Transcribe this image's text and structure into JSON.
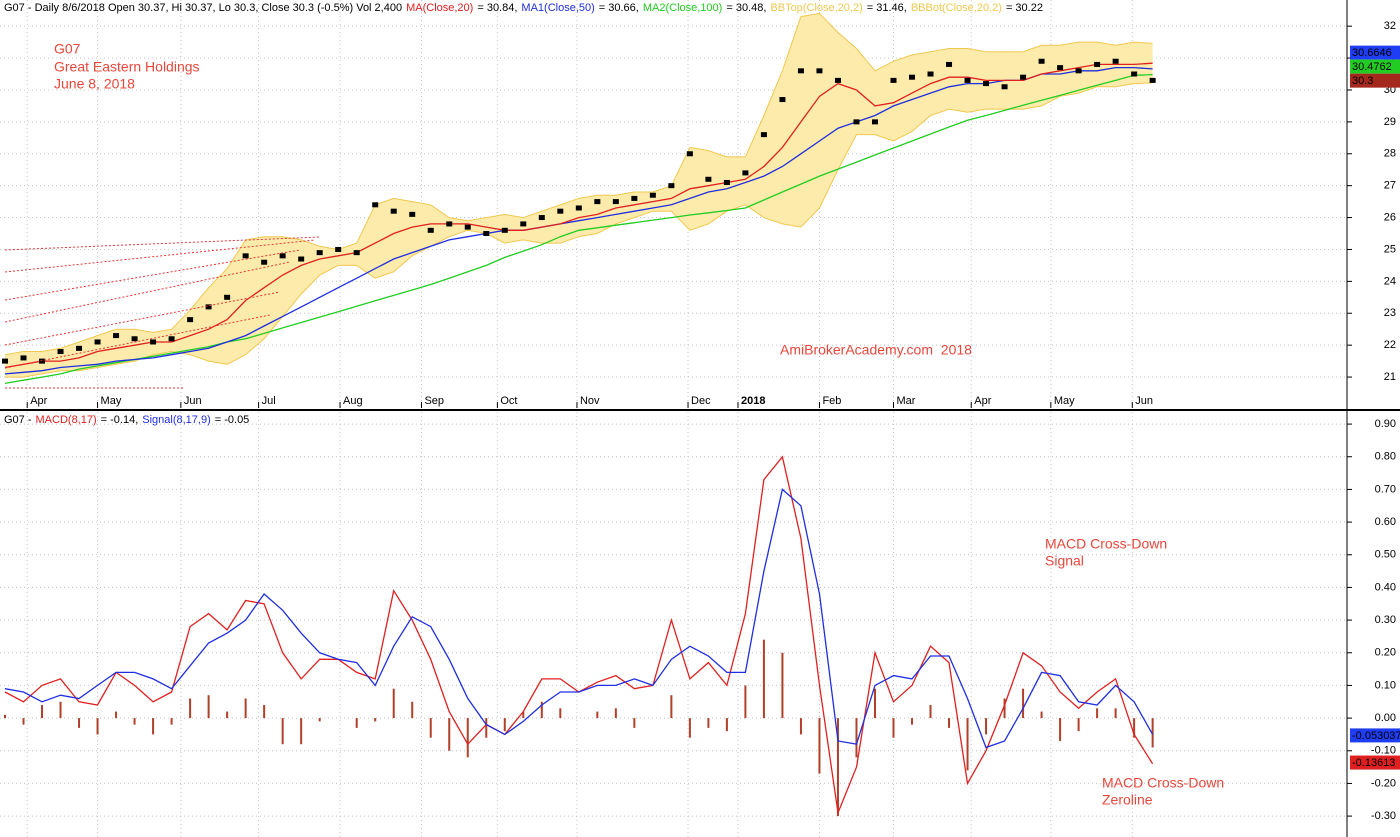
{
  "chart_data": [
    {
      "type": "stock",
      "info": "G07 - Daily 8/6/2018 Open 30.37, Hi 30.37, Lo 30.3, Close 30.3 (-0.5%) Vol 2,400",
      "title": "G07",
      "subtitle": "Great Eastern Holdings",
      "date": "June 8, 2018",
      "watermark": "AmiBrokerAcademy.com  2018",
      "band_fill": "#fcebaa",
      "close": {
        "color": "#000000",
        "values": [
          21.5,
          21.6,
          21.5,
          21.8,
          21.9,
          22.1,
          22.3,
          22.2,
          22.1,
          22.2,
          22.8,
          23.2,
          23.5,
          24.8,
          24.6,
          24.8,
          24.7,
          24.9,
          25.0,
          24.9,
          26.4,
          26.2,
          26.1,
          25.6,
          25.8,
          25.7,
          25.5,
          25.6,
          25.8,
          26.0,
          26.2,
          26.3,
          26.5,
          26.5,
          26.6,
          26.7,
          27.0,
          28.0,
          27.2,
          27.1,
          27.4,
          28.6,
          29.7,
          30.6,
          30.6,
          30.3,
          29.0,
          29.0,
          30.3,
          30.4,
          30.5,
          30.8,
          30.3,
          30.2,
          30.1,
          30.4,
          30.9,
          30.7,
          30.6,
          30.8,
          30.9,
          30.5,
          30.3
        ]
      },
      "series": [
        {
          "name": "MA(Close,20)",
          "readout": "= 30.84,",
          "color": "#e02020",
          "values": [
            21.3,
            21.4,
            21.5,
            21.5,
            21.6,
            21.8,
            21.9,
            22.0,
            22.1,
            22.1,
            22.3,
            22.5,
            22.8,
            23.4,
            23.8,
            24.2,
            24.5,
            24.7,
            24.8,
            24.9,
            25.2,
            25.5,
            25.7,
            25.8,
            25.8,
            25.8,
            25.7,
            25.6,
            25.6,
            25.7,
            25.8,
            26.0,
            26.1,
            26.3,
            26.4,
            26.5,
            26.6,
            26.9,
            27.0,
            27.1,
            27.2,
            27.6,
            28.2,
            29.0,
            29.8,
            30.2,
            30.0,
            29.5,
            29.6,
            29.9,
            30.2,
            30.4,
            30.4,
            30.3,
            30.3,
            30.3,
            30.5,
            30.6,
            30.7,
            30.8,
            30.8,
            30.8,
            30.84
          ]
        },
        {
          "name": "MA1(Close,50)",
          "readout": "= 30.66,",
          "color": "#1f2ee0",
          "values": [
            21.1,
            21.15,
            21.2,
            21.3,
            21.35,
            21.4,
            21.5,
            21.55,
            21.6,
            21.7,
            21.8,
            21.9,
            22.1,
            22.3,
            22.6,
            22.9,
            23.2,
            23.5,
            23.8,
            24.1,
            24.4,
            24.7,
            24.9,
            25.1,
            25.3,
            25.4,
            25.5,
            25.6,
            25.6,
            25.7,
            25.8,
            25.9,
            26.0,
            26.1,
            26.2,
            26.3,
            26.4,
            26.6,
            26.8,
            26.9,
            27.1,
            27.3,
            27.6,
            28.0,
            28.4,
            28.8,
            29.0,
            29.2,
            29.5,
            29.7,
            29.9,
            30.1,
            30.2,
            30.2,
            30.3,
            30.3,
            30.5,
            30.5,
            30.6,
            30.6,
            30.7,
            30.7,
            30.66
          ]
        },
        {
          "name": "MA2(Close,100)",
          "readout": "= 30.48,",
          "color": "#22cc22",
          "values": [
            20.8,
            20.9,
            21.0,
            21.1,
            21.25,
            21.35,
            21.45,
            21.55,
            21.65,
            21.75,
            21.85,
            21.95,
            22.1,
            22.2,
            22.37,
            22.54,
            22.71,
            22.88,
            23.05,
            23.22,
            23.39,
            23.56,
            23.73,
            23.9,
            24.1,
            24.3,
            24.5,
            24.75,
            24.95,
            25.15,
            25.4,
            25.6,
            25.68,
            25.76,
            25.84,
            25.92,
            26.0,
            26.08,
            26.15,
            26.22,
            26.3,
            26.55,
            26.8,
            27.05,
            27.3,
            27.52,
            27.74,
            27.96,
            28.18,
            28.4,
            28.62,
            28.84,
            29.05,
            29.2,
            29.36,
            29.52,
            29.68,
            29.83,
            29.99,
            30.15,
            30.3,
            30.46,
            30.48
          ]
        },
        {
          "name": "BBTop(Close,20,2)",
          "readout": "= 31.46,",
          "color": "#f0c850",
          "values": [
            21.7,
            21.8,
            21.8,
            21.9,
            22.1,
            22.3,
            22.5,
            22.5,
            22.4,
            22.5,
            23.1,
            23.8,
            24.4,
            25.3,
            25.4,
            25.4,
            25.3,
            25.1,
            25.0,
            25.2,
            26.4,
            26.6,
            26.5,
            26.4,
            26.0,
            25.9,
            26.0,
            26.1,
            26.0,
            26.2,
            26.4,
            26.6,
            26.7,
            26.7,
            26.8,
            26.8,
            27.0,
            28.2,
            28.1,
            27.9,
            27.9,
            29.2,
            30.6,
            32.3,
            32.4,
            31.8,
            31.3,
            30.6,
            30.9,
            31.1,
            31.2,
            31.3,
            31.3,
            31.2,
            31.2,
            31.2,
            31.4,
            31.4,
            31.5,
            31.5,
            31.4,
            31.5,
            31.46
          ]
        },
        {
          "name": "BBBot(Close,20,2)",
          "readout": "= 30.22",
          "color": "#f0c850",
          "values": [
            21.0,
            21.0,
            21.1,
            21.2,
            21.2,
            21.3,
            21.4,
            21.5,
            21.7,
            21.8,
            21.7,
            21.5,
            21.4,
            21.7,
            22.2,
            22.9,
            23.6,
            24.2,
            24.5,
            24.5,
            24.1,
            24.3,
            24.8,
            25.1,
            25.4,
            25.6,
            25.5,
            25.2,
            25.3,
            25.2,
            25.2,
            25.4,
            25.5,
            25.8,
            26.0,
            26.2,
            26.2,
            25.6,
            25.8,
            26.2,
            26.4,
            26.0,
            25.8,
            25.7,
            26.3,
            27.5,
            28.6,
            28.6,
            28.4,
            28.7,
            29.2,
            29.4,
            29.3,
            29.4,
            29.4,
            29.4,
            29.5,
            29.8,
            29.9,
            30.1,
            30.1,
            30.2,
            30.22
          ]
        }
      ],
      "last_tags": [
        {
          "value": 30.6646,
          "label": "30.6646",
          "color": "#1f3df5",
          "text_color": "#ffffff"
        },
        {
          "value": 30.4762,
          "label": "30.4762",
          "color": "#22cc22",
          "text_color": "#000000"
        },
        {
          "value": 30.3,
          "label": "30.3",
          "color": "#a5281c",
          "text_color": "#ffffff"
        }
      ],
      "xlim": [
        -0.27,
        72.5
      ],
      "xticks": [
        {
          "value": 1.2,
          "label": "Apr"
        },
        {
          "value": 5.0,
          "label": "May"
        },
        {
          "value": 9.5,
          "label": "Jun"
        },
        {
          "value": 13.7,
          "label": "Jul"
        },
        {
          "value": 18.1,
          "label": "Aug"
        },
        {
          "value": 22.5,
          "label": "Sep"
        },
        {
          "value": 26.6,
          "label": "Oct"
        },
        {
          "value": 30.9,
          "label": "Nov"
        },
        {
          "value": 36.9,
          "label": "Dec"
        },
        {
          "value": 39.6,
          "label": "2018",
          "bold": true
        },
        {
          "value": 44.0,
          "label": "Feb"
        },
        {
          "value": 48.0,
          "label": "Mar"
        },
        {
          "value": 52.2,
          "label": "Apr"
        },
        {
          "value": 56.5,
          "label": "May"
        },
        {
          "value": 60.9,
          "label": "Jun"
        }
      ],
      "ylim": [
        20.03,
        32.82
      ],
      "yticks": [
        21,
        22,
        23,
        24,
        25,
        26,
        27,
        28,
        29,
        30,
        31,
        32
      ],
      "grid": true
    },
    {
      "type": "macd",
      "info": "G07 -",
      "annotations": [
        "MACD Cross-Down",
        "Signal",
        "MACD Cross-Down",
        "Zeroline"
      ],
      "histogram": {
        "color": "#b0402a",
        "values": [
          0.01,
          -0.02,
          0.04,
          0.05,
          -0.03,
          -0.05,
          0.02,
          -0.02,
          -0.05,
          -0.02,
          0.06,
          0.07,
          0.02,
          0.06,
          0.04,
          -0.08,
          -0.08,
          -0.01,
          0.0,
          -0.03,
          -0.01,
          0.09,
          0.05,
          -0.06,
          -0.1,
          -0.12,
          -0.06,
          -0.04,
          0.02,
          0.05,
          0.03,
          0.0,
          0.02,
          0.03,
          -0.03,
          0.0,
          0.07,
          -0.06,
          -0.03,
          -0.04,
          0.1,
          0.24,
          0.2,
          -0.05,
          -0.17,
          -0.3,
          -0.12,
          0.09,
          -0.06,
          -0.02,
          0.04,
          -0.03,
          -0.16,
          -0.05,
          0.06,
          0.09,
          0.02,
          -0.07,
          -0.04,
          0.03,
          0.03,
          -0.06,
          -0.09
        ]
      },
      "series": [
        {
          "name": "MACD(8,17)",
          "readout": "= -0.14,",
          "color": "#e02020",
          "values": [
            0.08,
            0.05,
            0.1,
            0.12,
            0.05,
            0.04,
            0.14,
            0.1,
            0.05,
            0.08,
            0.28,
            0.32,
            0.27,
            0.36,
            0.35,
            0.2,
            0.12,
            0.18,
            0.18,
            0.14,
            0.12,
            0.39,
            0.3,
            0.18,
            0.02,
            -0.08,
            -0.02,
            -0.05,
            0.02,
            0.12,
            0.12,
            0.08,
            0.11,
            0.13,
            0.09,
            0.1,
            0.3,
            0.12,
            0.17,
            0.1,
            0.32,
            0.73,
            0.8,
            0.55,
            0.1,
            -0.29,
            -0.15,
            0.2,
            0.05,
            0.1,
            0.22,
            0.17,
            -0.2,
            -0.1,
            0.04,
            0.2,
            0.16,
            0.08,
            0.03,
            0.08,
            0.12,
            -0.05,
            -0.14
          ]
        },
        {
          "name": "Signal(8,17,9)",
          "readout": "= -0.05",
          "color": "#1f2ee0",
          "values": [
            0.09,
            0.08,
            0.05,
            0.07,
            0.06,
            0.1,
            0.14,
            0.14,
            0.12,
            0.09,
            0.16,
            0.23,
            0.26,
            0.3,
            0.38,
            0.33,
            0.26,
            0.2,
            0.18,
            0.17,
            0.1,
            0.22,
            0.31,
            0.28,
            0.18,
            0.06,
            -0.02,
            -0.05,
            -0.01,
            0.04,
            0.08,
            0.08,
            0.1,
            0.1,
            0.12,
            0.1,
            0.18,
            0.22,
            0.19,
            0.14,
            0.14,
            0.45,
            0.7,
            0.65,
            0.38,
            -0.07,
            -0.08,
            0.1,
            0.13,
            0.12,
            0.19,
            0.19,
            0.06,
            -0.09,
            -0.07,
            0.03,
            0.14,
            0.13,
            0.05,
            0.04,
            0.1,
            0.05,
            -0.05
          ]
        }
      ],
      "last_tags": [
        {
          "value": -0.053037,
          "label": "-0.053037",
          "color": "#1f3df5",
          "text_color": "#ffffff"
        },
        {
          "value": -0.13613,
          "label": "-0.13613",
          "color": "#e02020",
          "text_color": "#ffffff"
        }
      ],
      "ylim": [
        -0.364,
        0.937
      ],
      "yticks": [
        {
          "value": 0.9,
          "label": "0.90"
        },
        {
          "value": 0.8,
          "label": "0.80"
        },
        {
          "value": 0.7,
          "label": "0.70"
        },
        {
          "value": 0.6,
          "label": "0.60"
        },
        {
          "value": 0.5,
          "label": "0.50"
        },
        {
          "value": 0.4,
          "label": "0.40"
        },
        {
          "value": 0.3,
          "label": "0.30"
        },
        {
          "value": 0.2,
          "label": "0.20"
        },
        {
          "value": 0.1,
          "label": "0.10"
        },
        {
          "value": 0,
          "label": "0.00"
        },
        {
          "value": -0.1,
          "label": "-0.10"
        },
        {
          "value": -0.2,
          "label": "-0.20"
        },
        {
          "value": -0.3,
          "label": "-0.30"
        }
      ],
      "grid": true
    }
  ]
}
